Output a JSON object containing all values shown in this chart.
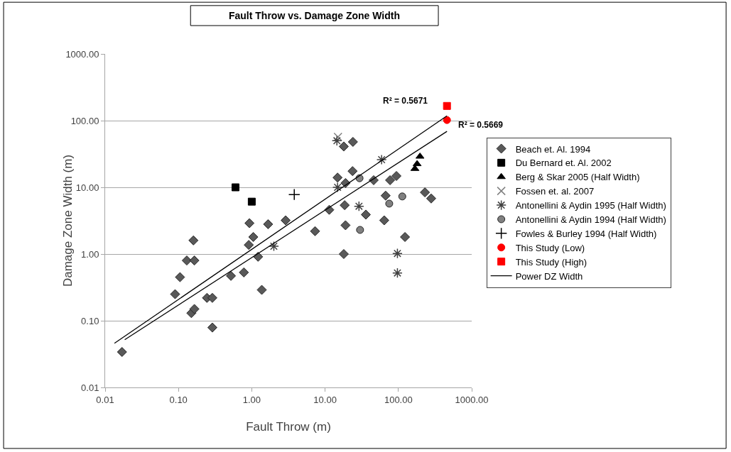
{
  "chart_data": {
    "type": "scatter",
    "title": "Fault Throw vs. Damage Zone Width",
    "xlabel": "Fault Throw (m)",
    "ylabel": "Damage Zone Width (m)",
    "log": "xy",
    "grid": "y",
    "legend": "right",
    "xlim": [
      0.01,
      1000
    ],
    "ylim": [
      0.01,
      1000
    ],
    "xticks": [
      {
        "value": 0.01,
        "label": "0.01"
      },
      {
        "value": 0.1,
        "label": "0.10"
      },
      {
        "value": 1,
        "label": "1.00"
      },
      {
        "value": 10,
        "label": "10.00"
      },
      {
        "value": 100,
        "label": "100.00"
      },
      {
        "value": 1000,
        "label": "1000.00"
      }
    ],
    "yticks": [
      {
        "value": 0.01,
        "label": "0.01"
      },
      {
        "value": 0.1,
        "label": "0.10"
      },
      {
        "value": 1,
        "label": "1.00"
      },
      {
        "value": 10,
        "label": "10.00"
      },
      {
        "value": 100,
        "label": "100.00"
      },
      {
        "value": 1000,
        "label": "1000.00"
      }
    ],
    "annotations": [
      "R² = 0.5671",
      "R² = 0.5669"
    ],
    "series": [
      {
        "name": "Beach et. Al. 1994",
        "color": "#595959",
        "marker": "diamond",
        "x": [
          0.017,
          0.09,
          0.105,
          0.13,
          0.165,
          0.16,
          0.15,
          0.165,
          0.245,
          0.29,
          0.29,
          0.52,
          0.78,
          1.37,
          1.22,
          0.91,
          1.05,
          0.93,
          1.67,
          2.9,
          7.3,
          11.4,
          18.5,
          19,
          18,
          14.8,
          19,
          18,
          24,
          23.7,
          36,
          46,
          64,
          67,
          77,
          94,
          123,
          230,
          280
        ],
        "values": [
          0.034,
          0.25,
          0.45,
          0.8,
          0.8,
          1.6,
          0.13,
          0.15,
          0.22,
          0.22,
          0.079,
          0.47,
          0.53,
          0.29,
          0.91,
          1.37,
          1.8,
          2.9,
          2.8,
          3.2,
          2.2,
          4.6,
          5.4,
          2.7,
          1.0,
          14,
          11.6,
          41,
          48,
          17.5,
          3.9,
          12.8,
          3.2,
          7.5,
          12.8,
          14.8,
          1.8,
          8.4,
          6.8
        ]
      },
      {
        "name": "Du Bernard et. Al. 2002",
        "color": "#000000",
        "marker": "square",
        "x": [
          0.6,
          1.0
        ],
        "values": [
          10,
          6.1
        ]
      },
      {
        "name": "Berg & Skar 2005 (Half Width)",
        "color": "#000000",
        "marker": "triangle",
        "x": [
          197,
          180,
          168
        ],
        "values": [
          29,
          22.4,
          19
        ]
      },
      {
        "name": "Fossen et. al. 2007",
        "color": "#808080",
        "marker": "x",
        "x": [
          15
        ],
        "values": [
          57
        ]
      },
      {
        "name": "Antonellini & Aydin 1995 (Half Width)",
        "color": "#404040",
        "marker": "cross",
        "x": [
          2.0,
          14.5,
          59,
          14.8,
          29,
          97,
          97
        ],
        "values": [
          1.31,
          50,
          26,
          10,
          5.2,
          1.02,
          0.52
        ]
      },
      {
        "name": "Antonellini & Aydin 1994 (Half Width)",
        "color": "#808080",
        "marker": "circle",
        "x": [
          29.5,
          75,
          113,
          30
        ],
        "values": [
          13.7,
          5.7,
          7.3,
          2.3
        ]
      },
      {
        "name": "Fowles & Burley 1994 (Half Width)",
        "color": "#000000",
        "marker": "plus",
        "x": [
          3.8
        ],
        "values": [
          7.8
        ]
      },
      {
        "name": "This Study (Low)",
        "color": "#ff0000",
        "marker": "circle",
        "x": [
          460
        ],
        "values": [
          102
        ]
      },
      {
        "name": "This Study (High)",
        "color": "#ff0000",
        "marker": "square",
        "x": [
          460
        ],
        "values": [
          166
        ]
      },
      {
        "name": "Power DZ Width",
        "type": "line",
        "color": "#000000",
        "marker": "none",
        "x": [
          0.0134,
          460
        ],
        "values": [
          0.046,
          118
        ]
      },
      {
        "type": "line",
        "color": "#000000",
        "marker": "none",
        "x": [
          0.0185,
          460
        ],
        "values": [
          0.052,
          69
        ]
      }
    ]
  }
}
